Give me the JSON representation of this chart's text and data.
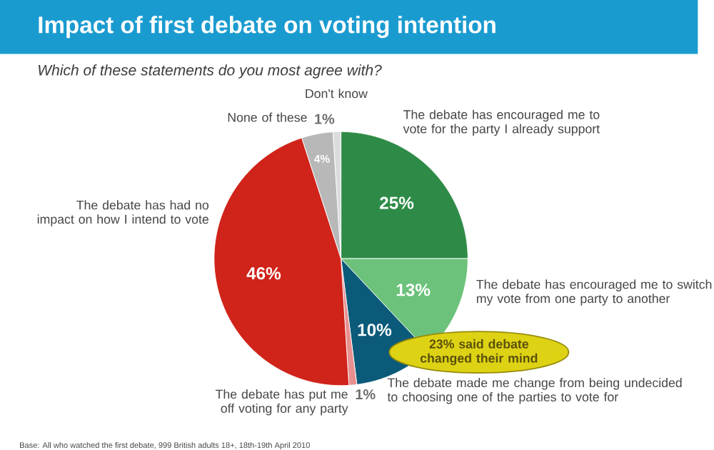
{
  "chart_data": {
    "type": "pie",
    "title": "Impact of first debate on voting intention",
    "subtitle": "Which of these statements do you most agree with?",
    "categories": [
      "The debate has encouraged me to vote for the party I already support",
      "The debate has encouraged me to switch my vote from one party to another",
      "The debate made me change from being undecided to choosing one of the parties to vote for",
      "The debate has put me off voting for any party",
      "The debate has had no impact on how I intend to vote",
      "None of these",
      "Don't know"
    ],
    "values": [
      25,
      13,
      10,
      1,
      46,
      4,
      1
    ],
    "colors": [
      "#2e8b47",
      "#6cc27a",
      "#0b5a7a",
      "#e89090",
      "#d0231a",
      "#b8b8b8",
      "#dcdcdc"
    ],
    "value_labels": [
      "25%",
      "13%",
      "10%",
      "1%",
      "46%",
      "4%",
      "1%"
    ],
    "annotations": [
      "23% said debate changed their mind",
      "Base: All who watched the first debate, 999 British adults 18+, 18th-19th April 2010"
    ]
  }
}
